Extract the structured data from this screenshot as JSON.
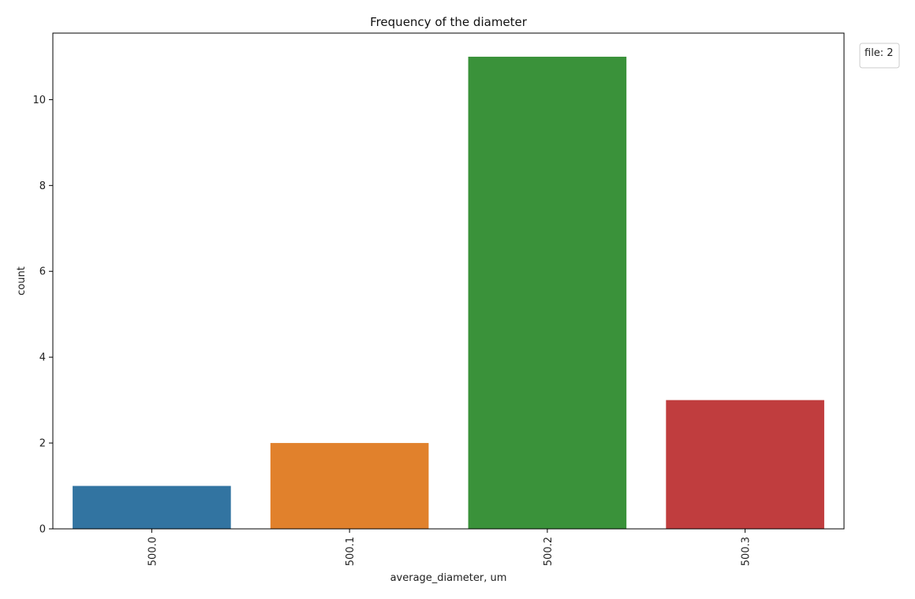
{
  "chart_data": {
    "type": "bar",
    "title": "Frequency of the diameter",
    "xlabel": "average_diameter, um",
    "ylabel": "count",
    "categories": [
      "500.0",
      "500.1",
      "500.2",
      "500.3"
    ],
    "values": [
      1,
      2,
      11,
      3
    ],
    "colors": [
      "#3274a1",
      "#e1812c",
      "#3a923a",
      "#c03d3e"
    ],
    "ylim": [
      0,
      11.55
    ],
    "yticks": [
      0,
      2,
      4,
      6,
      8,
      10
    ],
    "grid": false,
    "legend": {
      "title": "file: 2",
      "placement": "outside-top-right"
    }
  }
}
